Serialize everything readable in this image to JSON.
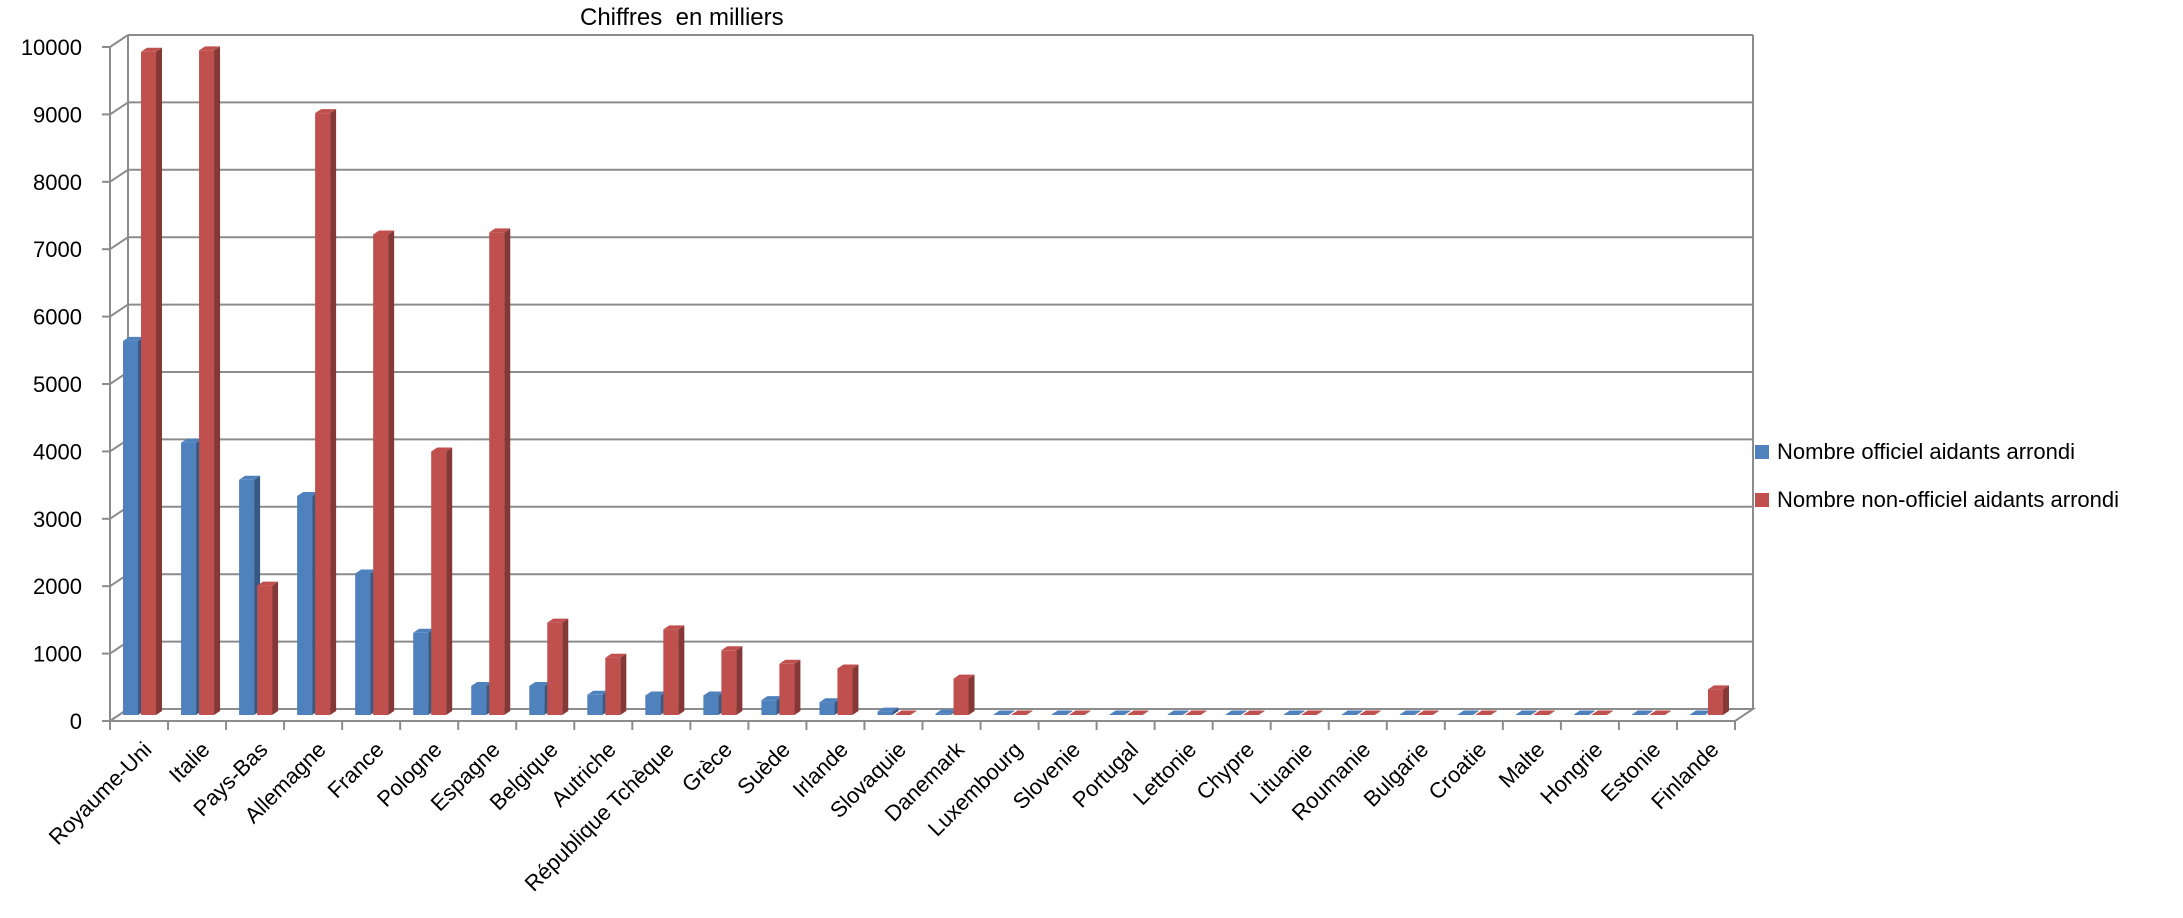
{
  "chart_data": {
    "type": "bar",
    "title": "Chiffres  en milliers",
    "xlabel": "",
    "ylabel": "",
    "ylim": [
      0,
      10000
    ],
    "yticks": [
      0,
      1000,
      2000,
      3000,
      4000,
      5000,
      6000,
      7000,
      8000,
      9000,
      10000
    ],
    "grid": true,
    "legend_position": "right",
    "categories": [
      "Royaume-Uni",
      "Italie",
      "Pays-Bas",
      "Allemagne",
      "France",
      "Pologne",
      "Espagne",
      "Belgique",
      "Autriche",
      "République Tchèque",
      "Grèce",
      "Suède",
      "Irlande",
      "Slovaquie",
      "Danemark",
      "Luxembourg",
      "Slovenie",
      "Portugal",
      "Lettonie",
      "Chypre",
      "Lituanie",
      "Roumanie",
      "Bulgarie",
      "Croatie",
      "Malte",
      "Hongrie",
      "Estonie",
      "Finlande"
    ],
    "series": [
      {
        "name": "Nombre officiel aidants arrondi",
        "color": "#4F81BD",
        "values": [
          5550,
          4040,
          3490,
          3250,
          2100,
          1220,
          430,
          430,
          300,
          290,
          290,
          220,
          190,
          50,
          20,
          5,
          5,
          5,
          5,
          5,
          5,
          5,
          5,
          5,
          5,
          5,
          5,
          5
        ]
      },
      {
        "name": "Nombre non-officiel aidants arrondi",
        "color": "#C0504D",
        "values": [
          9840,
          9860,
          1920,
          8930,
          7130,
          3910,
          7160,
          1370,
          850,
          1270,
          960,
          760,
          690,
          5,
          540,
          5,
          5,
          5,
          5,
          5,
          5,
          5,
          5,
          5,
          5,
          5,
          5,
          380
        ]
      }
    ]
  }
}
